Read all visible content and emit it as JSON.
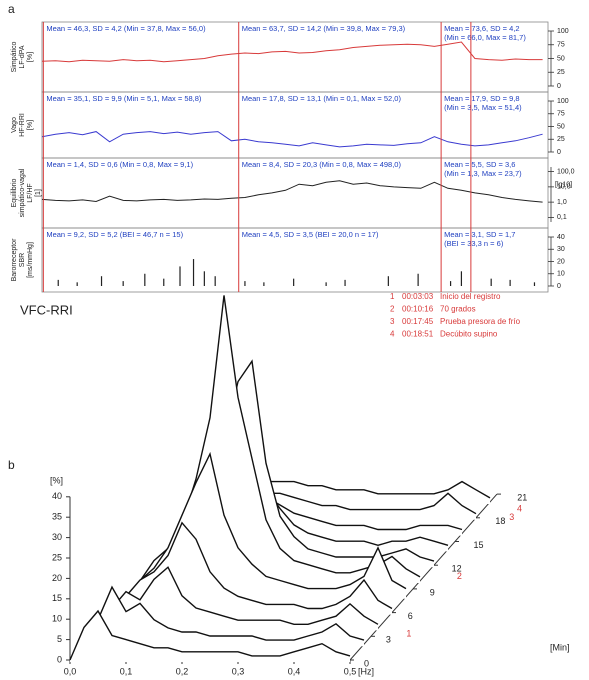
{
  "panel_labels": [
    "a",
    "b"
  ],
  "events": [
    {
      "number": "1",
      "time": "00:03:03",
      "label": "Inicio del registro",
      "x": 3.05
    },
    {
      "number": "2",
      "time": "00:10:16",
      "label": "70 grados",
      "x": 10.27
    },
    {
      "number": "3",
      "time": "00:17:45",
      "label": "Prueba presora de frío",
      "x": 17.75
    },
    {
      "number": "4",
      "time": "00:18:51",
      "label": "Decúbito supino",
      "x": 18.85
    }
  ],
  "chart_data": [
    {
      "type": "line",
      "ylabel": [
        "Simpático",
        "LF-dPA",
        "[%]"
      ],
      "color": "#d83a3a",
      "xlim": [
        3,
        21.7
      ],
      "ylim": [
        0,
        100
      ],
      "yticks": [
        0,
        25,
        50,
        75,
        100
      ],
      "annotations": [
        [
          "Mean = 46,3, SD = 4,2 (Min = 37,8, Max = 56,0)"
        ],
        [
          "Mean = 63,7, SD = 14,2 (Min = 39,8, Max = 79,3)"
        ],
        [
          "Mean = 73,6, SD = 4,2",
          "(Min = 66,0, Max = 81,7)"
        ]
      ],
      "x": [
        3,
        3.5,
        4,
        4.5,
        5,
        5.5,
        6,
        6.5,
        7,
        7.5,
        8,
        8.5,
        9,
        9.5,
        10,
        10.5,
        11,
        11.5,
        12,
        12.5,
        13,
        13.5,
        14,
        14.5,
        15,
        15.5,
        16,
        16.5,
        17,
        17.5,
        18,
        18.5,
        19,
        19.5,
        20,
        20.5,
        21,
        21.5
      ],
      "values": [
        45,
        46,
        44,
        47,
        46,
        45,
        48,
        46,
        47,
        44,
        46,
        48,
        50,
        55,
        58,
        60,
        59,
        62,
        63,
        60,
        61,
        64,
        66,
        70,
        72,
        74,
        75,
        76,
        75,
        72,
        76,
        80,
        50,
        48,
        47,
        49,
        48,
        48
      ]
    },
    {
      "type": "line",
      "ylabel": [
        "Vago",
        "HF-RRI",
        "[%]"
      ],
      "color": "#3a3ad0",
      "xlim": [
        3,
        21.7
      ],
      "ylim": [
        0,
        100
      ],
      "yticks": [
        0,
        25,
        50,
        75,
        100
      ],
      "annotations": [
        [
          "Mean = 35,1, SD = 9,9 (Min = 5,1, Max = 58,8)"
        ],
        [
          "Mean = 17,8, SD = 13,1 (Min = 0,1, Max = 52,0)"
        ],
        [
          "Mean = 17,9, SD = 9,8",
          "(Min = 3,5, Max = 51,4)"
        ]
      ],
      "x": [
        3,
        3.5,
        4,
        4.5,
        5,
        5.5,
        6,
        6.5,
        7,
        7.5,
        8,
        8.5,
        9,
        9.5,
        10,
        10.5,
        11,
        11.5,
        12,
        12.5,
        13,
        13.5,
        14,
        14.5,
        15,
        15.5,
        16,
        16.5,
        17,
        17.5,
        18,
        18.5,
        19,
        19.5,
        20,
        20.5,
        21,
        21.5
      ],
      "values": [
        30,
        35,
        38,
        34,
        40,
        20,
        35,
        38,
        40,
        36,
        39,
        35,
        38,
        40,
        22,
        25,
        20,
        18,
        15,
        12,
        18,
        14,
        10,
        12,
        15,
        14,
        13,
        16,
        18,
        30,
        20,
        15,
        12,
        14,
        18,
        22,
        28,
        35
      ]
    },
    {
      "type": "line",
      "ylabel": [
        "Equilibrio",
        "simpático-vagal",
        "LF/HF",
        "[1]"
      ],
      "color": "#222222",
      "xlim": [
        3,
        21.7
      ],
      "ylog": true,
      "ylim": [
        0.05,
        200
      ],
      "yunit": "[lg10]",
      "yticks": [
        {
          "value": 0.1,
          "label": "0,1"
        },
        {
          "value": 1,
          "label": "1,0"
        },
        {
          "value": 10,
          "label": "10,0"
        },
        {
          "value": 100,
          "label": "100,0"
        }
      ],
      "annotations": [
        [
          "Mean = 1,4, SD = 0,6 (Min = 0,8, Max = 9,1)"
        ],
        [
          "Mean = 8,4, SD = 20,3 (Min = 0,8, Max = 498,0)"
        ],
        [
          "Mean = 5,5, SD = 3,6",
          "(Min = 1,3, Max = 23,7)"
        ]
      ],
      "x": [
        3,
        3.5,
        4,
        4.5,
        5,
        5.5,
        6,
        6.5,
        7,
        7.5,
        8,
        8.5,
        9,
        9.5,
        10,
        10.5,
        11,
        11.5,
        12,
        12.5,
        13,
        13.5,
        14,
        14.5,
        15,
        15.5,
        16,
        16.5,
        17,
        17.5,
        18,
        18.5,
        19,
        19.5,
        20,
        20.5,
        21,
        21.5
      ],
      "values": [
        1.5,
        1.3,
        1.2,
        1.4,
        1.1,
        2.5,
        1.3,
        1.2,
        1.4,
        1.5,
        1.3,
        1.4,
        1.6,
        1.5,
        1.8,
        2,
        3,
        4,
        6,
        15,
        12,
        20,
        25,
        15,
        18,
        12,
        10,
        9,
        8,
        20,
        8,
        6,
        4,
        3,
        2,
        1.5,
        1.2,
        1
      ]
    },
    {
      "type": "bar",
      "ylabel": [
        "Barorreceptor",
        "SBR",
        "[ms/mmHg]"
      ],
      "color": "#222222",
      "xlim": [
        3,
        21.7
      ],
      "ylim": [
        0,
        40
      ],
      "yticks": [
        0,
        10,
        20,
        30,
        40
      ],
      "annotations": [
        [
          "Mean = 9,2, SD = 5,2 (BEI = 46,7 n = 15)"
        ],
        [
          "Mean = 4,5, SD = 3,5 (BEI = 20,0 n = 17)"
        ],
        [
          "Mean = 3,1, SD = 1,7",
          "(BEI = 33,3 n = 6)"
        ]
      ],
      "x": [
        3.6,
        4.3,
        5.2,
        6.0,
        6.8,
        7.5,
        8.1,
        8.6,
        9.0,
        9.4,
        10.5,
        11.2,
        12.3,
        13.5,
        14.2,
        15.8,
        16.9,
        18.1,
        18.5,
        19.6,
        20.3,
        21.2
      ],
      "values": [
        5,
        3,
        8,
        4,
        10,
        6,
        16,
        22,
        12,
        8,
        4,
        3,
        6,
        3,
        5,
        8,
        10,
        4,
        12,
        6,
        5,
        3
      ]
    },
    {
      "type": "waterfall",
      "title": "VFC-RRI",
      "color": "#111111",
      "event_color": "#d83a3a",
      "x": [
        0,
        0.025,
        0.05,
        0.075,
        0.1,
        0.125,
        0.15,
        0.175,
        0.2,
        0.225,
        0.25,
        0.275,
        0.3,
        0.325,
        0.35,
        0.375,
        0.4,
        0.425,
        0.45,
        0.475,
        0.5
      ],
      "xlim": [
        0,
        0.5
      ],
      "xlabel": "[Hz]",
      "xticks": [
        {
          "value": 0,
          "label": "0,0"
        },
        {
          "value": 0.1,
          "label": "0,1"
        },
        {
          "value": 0.2,
          "label": "0,2"
        },
        {
          "value": 0.3,
          "label": "0,3"
        },
        {
          "value": 0.4,
          "label": "0,4"
        },
        {
          "value": 0.5,
          "label": "0,5"
        }
      ],
      "ylim": [
        0,
        40
      ],
      "yticks": [
        0,
        5,
        10,
        15,
        20,
        25,
        30,
        35,
        40
      ],
      "ylabel": "[%]",
      "zlim": [
        0,
        21
      ],
      "zticks": [
        0,
        3,
        6,
        9,
        12,
        15,
        18,
        21
      ],
      "zlabel": "[Min]",
      "series": [
        {
          "depth": 0,
          "values": [
            0,
            8,
            12,
            6,
            5,
            4,
            3,
            3,
            2,
            2,
            2,
            2,
            2,
            1,
            1,
            1,
            2,
            3,
            4,
            2,
            1
          ]
        },
        {
          "depth": 2,
          "values": [
            0,
            6,
            14,
            8,
            10,
            6,
            4,
            3,
            3,
            2,
            2,
            2,
            2,
            1,
            1,
            1,
            2,
            3,
            5,
            2,
            1
          ]
        },
        {
          "depth": 4,
          "values": [
            0,
            5,
            9,
            7,
            12,
            15,
            8,
            5,
            4,
            3,
            2,
            2,
            2,
            2,
            1,
            1,
            2,
            3,
            6,
            3,
            1
          ]
        },
        {
          "depth": 6,
          "values": [
            0,
            4,
            8,
            10,
            14,
            22,
            18,
            10,
            6,
            4,
            3,
            2,
            2,
            2,
            1,
            1,
            2,
            4,
            8,
            3,
            1
          ]
        },
        {
          "depth": 8,
          "values": [
            0,
            4,
            7,
            12,
            20,
            28,
            35,
            20,
            12,
            8,
            5,
            4,
            3,
            2,
            2,
            2,
            3,
            5,
            12,
            4,
            2
          ]
        },
        {
          "depth": 10,
          "values": [
            0,
            5,
            8,
            14,
            25,
            40,
            70,
            45,
            30,
            15,
            8,
            5,
            4,
            3,
            2,
            2,
            3,
            4,
            6,
            3,
            1
          ]
        },
        {
          "depth": 12,
          "values": [
            0,
            4,
            7,
            10,
            18,
            30,
            45,
            50,
            25,
            12,
            7,
            4,
            3,
            2,
            2,
            2,
            2,
            3,
            4,
            2,
            1
          ]
        },
        {
          "depth": 14,
          "values": [
            0,
            3,
            5,
            8,
            12,
            16,
            20,
            15,
            10,
            6,
            4,
            3,
            2,
            2,
            2,
            1,
            2,
            2,
            3,
            2,
            1
          ]
        },
        {
          "depth": 16,
          "values": [
            0,
            3,
            4,
            5,
            6,
            8,
            9,
            7,
            5,
            4,
            3,
            2,
            2,
            2,
            1,
            1,
            1,
            2,
            2,
            2,
            1
          ]
        },
        {
          "depth": 18,
          "values": [
            0,
            3,
            4,
            5,
            5,
            6,
            6,
            5,
            4,
            3,
            3,
            2,
            2,
            2,
            2,
            2,
            2,
            3,
            6,
            3,
            1
          ]
        },
        {
          "depth": 20,
          "values": [
            0,
            3,
            4,
            4,
            5,
            5,
            5,
            4,
            4,
            3,
            3,
            3,
            2,
            2,
            2,
            2,
            2,
            3,
            5,
            3,
            1
          ]
        }
      ]
    }
  ]
}
